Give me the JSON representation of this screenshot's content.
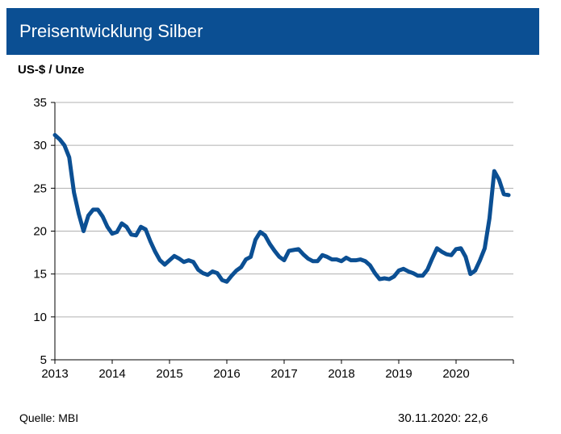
{
  "header": {
    "title": "Preisentwicklung Silber"
  },
  "footer": {
    "source": "Quelle: MBI",
    "last_value": "30.11.2020: 22,6"
  },
  "colors": {
    "title_bar": "#0b4f93",
    "line": "#0b4f93",
    "grid": "#b0b0b0"
  },
  "chart_data": {
    "type": "line",
    "title": "",
    "ylabel": "US-$ / Unze",
    "xlabel": "",
    "ylim": [
      5,
      35
    ],
    "yticks": [
      5,
      10,
      15,
      20,
      25,
      30,
      35
    ],
    "xlim": [
      "2013-01",
      "2020-12"
    ],
    "xticks": [
      "2013",
      "2014",
      "2015",
      "2016",
      "2017",
      "2018",
      "2019",
      "2020"
    ],
    "grid": true,
    "frequency": "monthly",
    "start": "2013-01",
    "series": [
      {
        "values": [
          31.2,
          30.7,
          30.0,
          28.6,
          24.5,
          22.0,
          20.0,
          21.8,
          22.5,
          22.5,
          21.7,
          20.5,
          19.7,
          19.9,
          20.9,
          20.5,
          19.6,
          19.5,
          20.5,
          20.2,
          18.8,
          17.6,
          16.6,
          16.1,
          16.6,
          17.1,
          16.8,
          16.4,
          16.6,
          16.4,
          15.5,
          15.1,
          14.9,
          15.3,
          15.1,
          14.3,
          14.1,
          14.8,
          15.4,
          15.8,
          16.7,
          17.0,
          19.0,
          19.9,
          19.5,
          18.5,
          17.7,
          17.0,
          16.6,
          17.7,
          17.8,
          17.9,
          17.3,
          16.8,
          16.5,
          16.5,
          17.2,
          17.0,
          16.7,
          16.7,
          16.5,
          16.9,
          16.6,
          16.6,
          16.7,
          16.5,
          16.0,
          15.1,
          14.4,
          14.5,
          14.4,
          14.7,
          15.4,
          15.6,
          15.3,
          15.1,
          14.8,
          14.8,
          15.5,
          16.8,
          18.0,
          17.6,
          17.3,
          17.2,
          17.9,
          18.0,
          17.0,
          15.0,
          15.4,
          16.6,
          18.0,
          21.5,
          27.0,
          26.0,
          24.3,
          24.2
        ]
      }
    ]
  }
}
